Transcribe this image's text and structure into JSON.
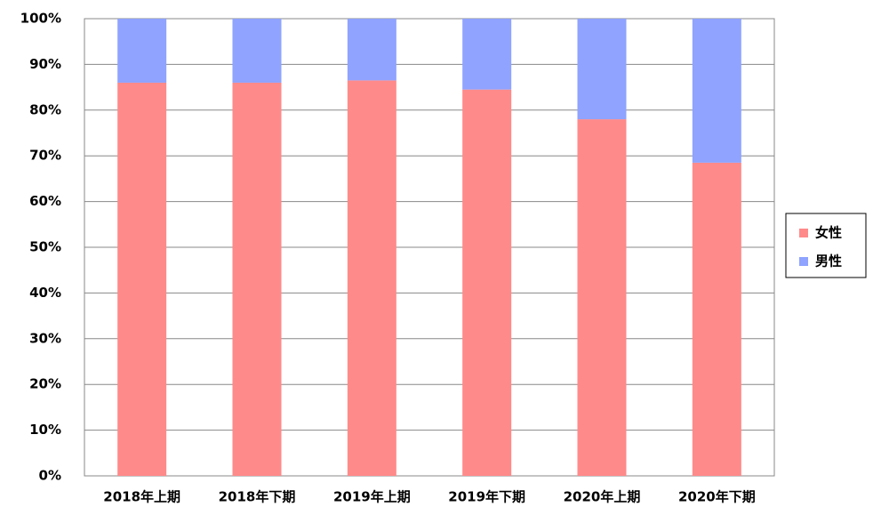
{
  "chart_data": {
    "type": "stacked_bar_percent",
    "categories": [
      "2018年上期",
      "2018年下期",
      "2019年上期",
      "2019年下期",
      "2020年上期",
      "2020年下期"
    ],
    "series": [
      {
        "name": "女性",
        "color": "#ff8a8a",
        "values": [
          86,
          86,
          86.5,
          84.5,
          78,
          68.5
        ]
      },
      {
        "name": "男性",
        "color": "#8fa3ff",
        "values": [
          14,
          14,
          13.5,
          15.5,
          22,
          31.5
        ]
      }
    ],
    "ylim": [
      0,
      100
    ],
    "yticks": [
      {
        "value": 0,
        "label": "0%"
      },
      {
        "value": 10,
        "label": "10%"
      },
      {
        "value": 20,
        "label": "20%"
      },
      {
        "value": 30,
        "label": "30%"
      },
      {
        "value": 40,
        "label": "40%"
      },
      {
        "value": 50,
        "label": "50%"
      },
      {
        "value": 60,
        "label": "60%"
      },
      {
        "value": 70,
        "label": "70%"
      },
      {
        "value": 80,
        "label": "80%"
      },
      {
        "value": 90,
        "label": "90%"
      },
      {
        "value": 100,
        "label": "100%"
      }
    ],
    "grid": true,
    "legend": "right"
  }
}
